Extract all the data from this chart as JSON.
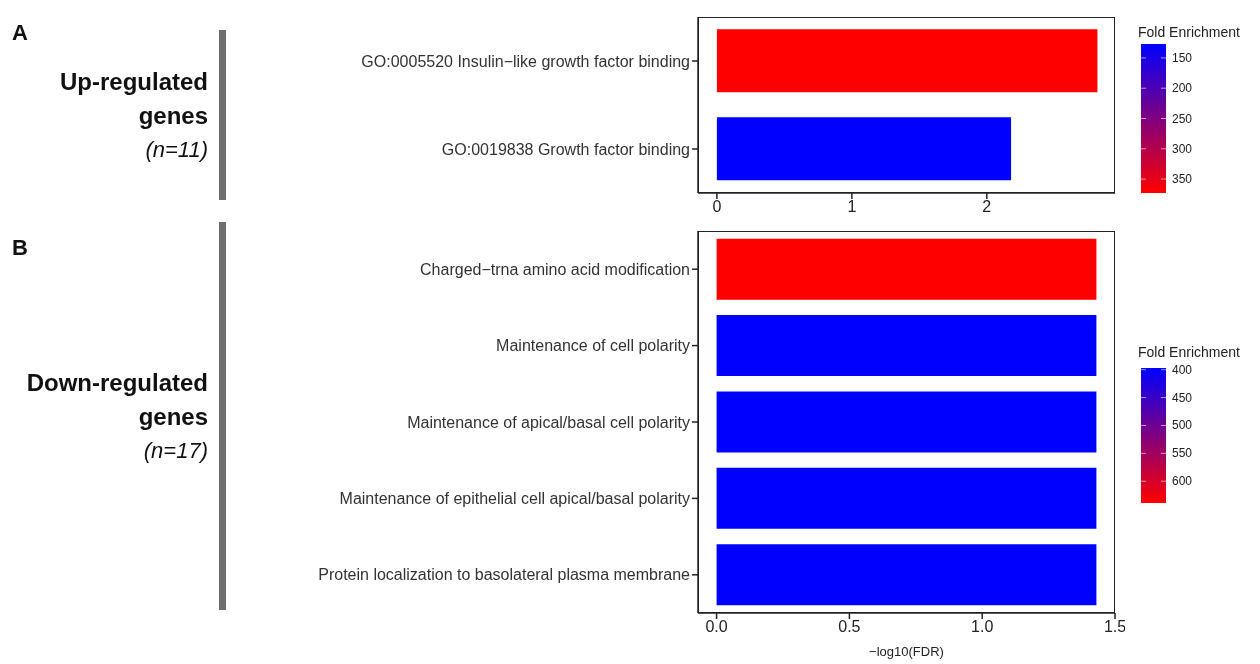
{
  "chart_data": [
    {
      "type": "bar",
      "orientation": "horizontal",
      "categories": [
        "GO:0005520 Insulin−like growth factor binding",
        "GO:0019838 Growth factor binding"
      ],
      "values": [
        2.82,
        2.18
      ],
      "colors": [
        "#ff0000",
        "#0000ff"
      ],
      "cvalues": [
        373,
        127
      ],
      "clim": [
        127,
        373
      ],
      "cticks": [
        150,
        200,
        250,
        300,
        350
      ],
      "clabel": "Fold Enrichment",
      "xlim": [
        -0.14,
        2.95
      ],
      "xticks": [
        0,
        1,
        2
      ],
      "annotations": [
        "A",
        "Up-regulated genes",
        "(n=11)"
      ]
    },
    {
      "type": "bar",
      "orientation": "horizontal",
      "categories": [
        "Charged−trna amino acid modification",
        "Maintenance of cell polarity",
        "Maintenance of apical/basal cell polarity",
        "Maintenance of epithelial cell apical/basal polarity",
        "Protein localization to basolateral plasma membrane"
      ],
      "values": [
        1.43,
        1.43,
        1.43,
        1.43,
        1.43
      ],
      "colors": [
        "#ff0000",
        "#0000ff",
        "#0000ff",
        "#0000ff",
        "#0000ff"
      ],
      "cvalues": [
        639,
        397,
        397,
        397,
        397
      ],
      "clim": [
        397,
        639
      ],
      "cticks": [
        400,
        450,
        500,
        550,
        600
      ],
      "clabel": "Fold Enrichment",
      "xlim": [
        -0.07,
        1.5
      ],
      "xticks": [
        {
          "value": 0,
          "label": "0.0"
        },
        {
          "value": 0.5,
          "label": "0.5"
        },
        {
          "value": 1,
          "label": "1.0"
        },
        {
          "value": 1.5,
          "label": "1.5"
        }
      ],
      "xlabel": "−log10(FDR)",
      "annotations": [
        "B",
        "Down-regulated genes",
        "(n=17)"
      ]
    }
  ]
}
